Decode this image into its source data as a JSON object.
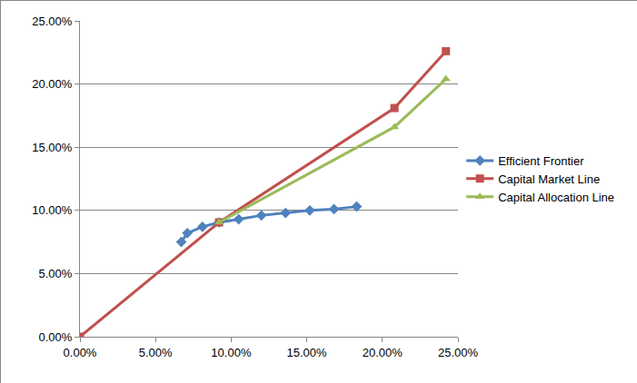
{
  "chart_data": {
    "type": "line",
    "xlim": [
      0,
      25
    ],
    "ylim": [
      0,
      25
    ],
    "xticks": [
      {
        "value": 0,
        "label": "0.00%"
      },
      {
        "value": 5,
        "label": "5.00%"
      },
      {
        "value": 10,
        "label": "10.00%"
      },
      {
        "value": 15,
        "label": "15.00%"
      },
      {
        "value": 20,
        "label": "20.00%"
      },
      {
        "value": 25,
        "label": "25.00%"
      }
    ],
    "yticks": [
      {
        "value": 0,
        "label": "0.00%"
      },
      {
        "value": 5,
        "label": "5.00%"
      },
      {
        "value": 10,
        "label": "10.00%"
      },
      {
        "value": 15,
        "label": "15.00%"
      },
      {
        "value": 20,
        "label": "20.00%"
      },
      {
        "value": 25,
        "label": "25.00%"
      }
    ],
    "grid": true,
    "legend": "right",
    "series": [
      {
        "name": "Efficient Frontier",
        "color": "#4f81bd",
        "marker": "diamond",
        "x": [
          6.7,
          7.1,
          8.1,
          9.2,
          10.5,
          12.0,
          13.6,
          15.2,
          16.8,
          18.3
        ],
        "values": [
          7.5,
          8.2,
          8.7,
          9.05,
          9.3,
          9.6,
          9.8,
          10.0,
          10.1,
          10.3
        ]
      },
      {
        "name": "Capital Market Line",
        "color": "#c0504d",
        "marker": "square",
        "x": [
          0,
          9.2,
          20.8,
          24.2
        ],
        "values": [
          0,
          9.05,
          18.1,
          22.6
        ]
      },
      {
        "name": "Capital Allocation Line",
        "color": "#9bbb59",
        "marker": "triangle-up",
        "x": [
          9.2,
          20.8,
          24.2
        ],
        "values": [
          9.05,
          16.6,
          20.4
        ]
      }
    ]
  }
}
